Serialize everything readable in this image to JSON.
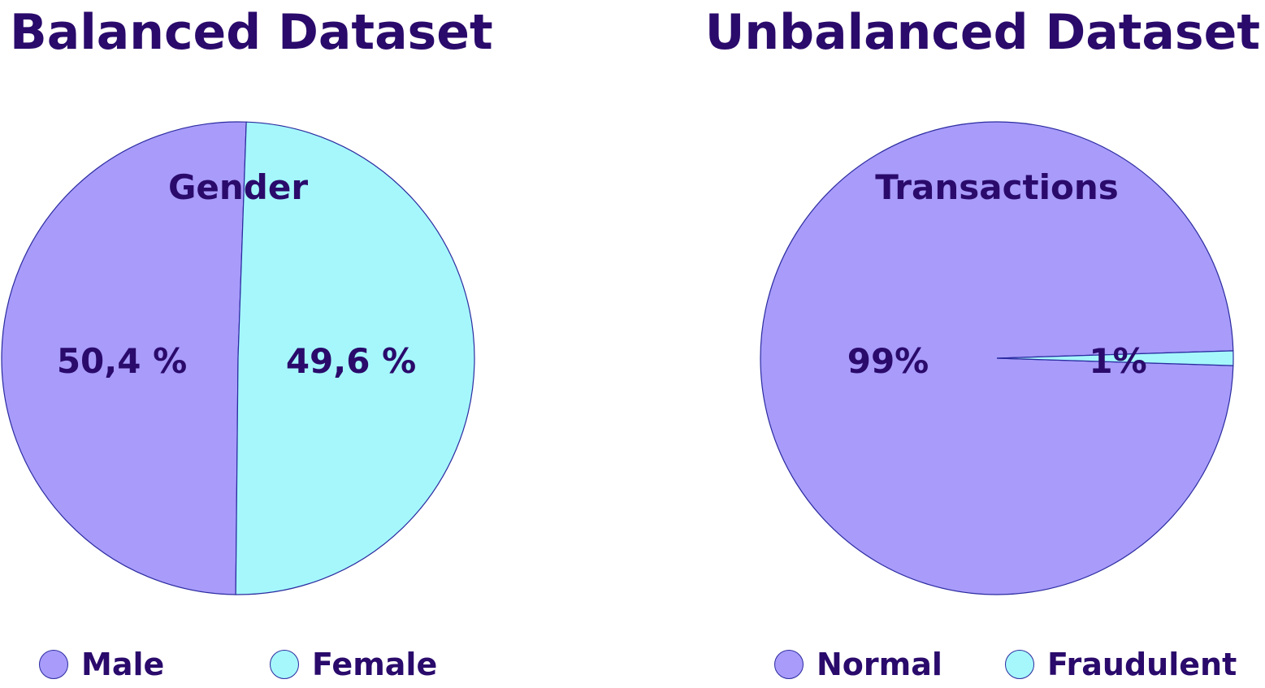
{
  "colors": {
    "text": "#2a0a6b",
    "slice_primary": "#a89bfa",
    "slice_secondary": "#a5f7fb",
    "stroke": "#2b2ba0"
  },
  "chart_data": [
    {
      "type": "pie",
      "panel_title": "Balanced Dataset",
      "title": "Gender",
      "slices": [
        {
          "name": "Male",
          "value": 50.4,
          "label": "50,4 %",
          "color": "#a89bfa"
        },
        {
          "name": "Female",
          "value": 49.6,
          "label": "49,6 %",
          "color": "#a5f7fb"
        }
      ],
      "legend": [
        "Male",
        "Female"
      ],
      "legend_placement": "bottom"
    },
    {
      "type": "pie",
      "panel_title": "Unbalanced Dataset",
      "title": "Transactions",
      "slices": [
        {
          "name": "Normal",
          "value": 99,
          "label": "99%",
          "color": "#a89bfa"
        },
        {
          "name": "Fraudulent",
          "value": 1,
          "label": "1%",
          "color": "#a5f7fb"
        }
      ],
      "legend": [
        "Normal",
        "Fraudulent"
      ],
      "legend_placement": "bottom"
    }
  ]
}
